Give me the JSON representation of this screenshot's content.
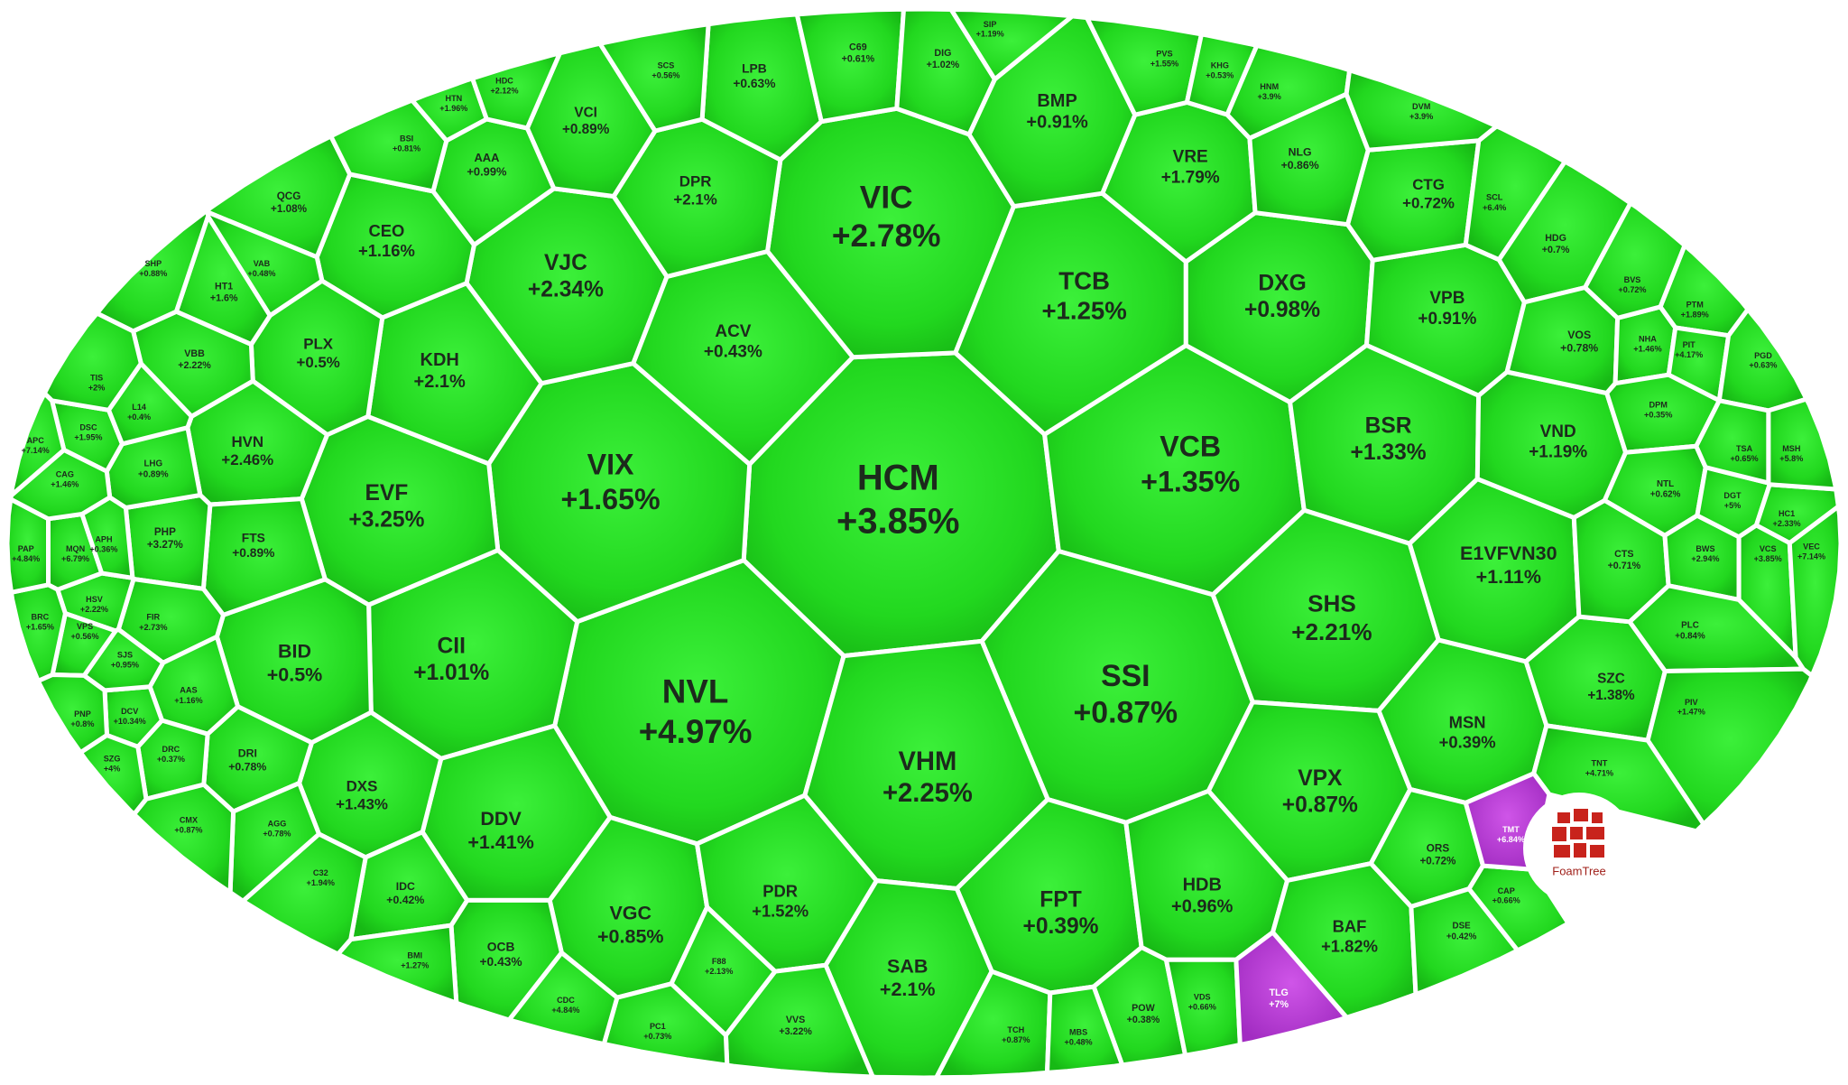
{
  "cells": [
    {
      "ticker": "HCM",
      "change": "+3.85%"
    },
    {
      "ticker": "NVL",
      "change": "+4.97%"
    },
    {
      "ticker": "VIC",
      "change": "+2.78%"
    },
    {
      "ticker": "VCB",
      "change": "+1.35%"
    },
    {
      "ticker": "SSI",
      "change": "+0.87%"
    },
    {
      "ticker": "VHM",
      "change": "+2.25%"
    },
    {
      "ticker": "VIX",
      "change": "+1.65%"
    },
    {
      "ticker": "TCB",
      "change": "+1.25%"
    },
    {
      "ticker": "DXG",
      "change": "+0.98%"
    },
    {
      "ticker": "BSR",
      "change": "+1.33%"
    },
    {
      "ticker": "SHS",
      "change": "+2.21%"
    },
    {
      "ticker": "VPX",
      "change": "+0.87%"
    },
    {
      "ticker": "FPT",
      "change": "+0.39%"
    },
    {
      "ticker": "SAB",
      "change": "+2.1%"
    },
    {
      "ticker": "CII",
      "change": "+1.01%"
    },
    {
      "ticker": "EVF",
      "change": "+3.25%"
    },
    {
      "ticker": "BID",
      "change": "+0.5%"
    },
    {
      "ticker": "VJC",
      "change": "+2.34%"
    },
    {
      "ticker": "KDH",
      "change": "+2.1%"
    },
    {
      "ticker": "DDV",
      "change": "+1.41%"
    },
    {
      "ticker": "VGC",
      "change": "+0.85%"
    },
    {
      "ticker": "PDR",
      "change": "+1.52%"
    },
    {
      "ticker": "HDB",
      "change": "+0.96%"
    },
    {
      "ticker": "BAF",
      "change": "+1.82%"
    },
    {
      "ticker": "MSN",
      "change": "+0.39%"
    },
    {
      "ticker": "E1VFVN30",
      "change": "+1.11%"
    },
    {
      "ticker": "VND",
      "change": "+1.19%"
    },
    {
      "ticker": "VPB",
      "change": "+0.91%"
    },
    {
      "ticker": "CTG",
      "change": "+0.72%"
    },
    {
      "ticker": "VRE",
      "change": "+1.79%"
    },
    {
      "ticker": "BMP",
      "change": "+0.91%"
    },
    {
      "ticker": "ACV",
      "change": "+0.43%"
    },
    {
      "ticker": "DPR",
      "change": "+2.1%"
    },
    {
      "ticker": "LPB",
      "change": "+0.63%"
    },
    {
      "ticker": "VCI",
      "change": "+0.89%"
    },
    {
      "ticker": "CEO",
      "change": "+1.16%"
    },
    {
      "ticker": "PLX",
      "change": "+0.5%"
    },
    {
      "ticker": "HVN",
      "change": "+2.46%"
    },
    {
      "ticker": "DXS",
      "change": "+1.43%"
    },
    {
      "ticker": "SZC",
      "change": "+1.38%"
    },
    {
      "ticker": "FTS",
      "change": "+0.89%"
    },
    {
      "ticker": "DRI",
      "change": "+0.78%"
    },
    {
      "ticker": "OCB",
      "change": "+0.43%"
    },
    {
      "ticker": "IDC",
      "change": "+0.42%"
    },
    {
      "ticker": "AAA",
      "change": "+0.99%"
    },
    {
      "ticker": "QCG",
      "change": "+1.08%"
    },
    {
      "ticker": "HT1",
      "change": "+1.6%"
    },
    {
      "ticker": "VBB",
      "change": "+2.22%"
    },
    {
      "ticker": "PHP",
      "change": "+3.27%"
    },
    {
      "ticker": "LHG",
      "change": "+0.89%"
    },
    {
      "ticker": "FIR",
      "change": "+2.73%"
    },
    {
      "ticker": "AAS",
      "change": "+1.16%"
    },
    {
      "ticker": "HSV",
      "change": "+2.22%"
    },
    {
      "ticker": "MQN",
      "change": "+6.79%"
    },
    {
      "ticker": "APH",
      "change": "+0.36%"
    },
    {
      "ticker": "DRC",
      "change": "+0.37%"
    },
    {
      "ticker": "HNM",
      "change": "+3.9%"
    },
    {
      "ticker": "NLG",
      "change": "+0.86%"
    },
    {
      "ticker": "SCL",
      "change": "+6.4%"
    },
    {
      "ticker": "HDG",
      "change": "+0.7%"
    },
    {
      "ticker": "VOS",
      "change": "+0.78%"
    },
    {
      "ticker": "NHA",
      "change": "+1.46%"
    },
    {
      "ticker": "DPM",
      "change": "+0.35%"
    },
    {
      "ticker": "NTL",
      "change": "+0.62%"
    },
    {
      "ticker": "CTS",
      "change": "+0.71%"
    },
    {
      "ticker": "BWS",
      "change": "+2.94%"
    },
    {
      "ticker": "DGT",
      "change": "+5%"
    },
    {
      "ticker": "PLC",
      "change": "+0.84%"
    },
    {
      "ticker": "PIV",
      "change": "+1.47%"
    },
    {
      "ticker": "TNT",
      "change": "+4.71%"
    },
    {
      "ticker": "ORS",
      "change": "+0.72%"
    },
    {
      "ticker": "DSE",
      "change": "+0.42%"
    },
    {
      "ticker": "POW",
      "change": "+0.38%"
    },
    {
      "ticker": "VVS",
      "change": "+3.22%"
    },
    {
      "ticker": "F88",
      "change": "+2.13%"
    },
    {
      "ticker": "PC1",
      "change": "+0.73%"
    },
    {
      "ticker": "C69",
      "change": "+0.61%"
    },
    {
      "ticker": "DIG",
      "change": "+1.02%"
    },
    {
      "ticker": "PVS",
      "change": "+1.55%"
    },
    {
      "ticker": "DVM",
      "change": "+3.9%"
    },
    {
      "ticker": "CDC",
      "change": "+4.84%"
    },
    {
      "ticker": "TCH",
      "change": "+0.87%"
    },
    {
      "ticker": "MBS",
      "change": "+0.48%"
    },
    {
      "ticker": "VDS",
      "change": "+0.66%"
    },
    {
      "ticker": "BMI",
      "change": "+1.27%"
    },
    {
      "ticker": "C32",
      "change": "+1.94%"
    },
    {
      "ticker": "AGG",
      "change": "+0.78%"
    },
    {
      "ticker": "CMX",
      "change": "+0.87%"
    },
    {
      "ticker": "DCV",
      "change": "+10.34%"
    },
    {
      "ticker": "SJS",
      "change": "+0.95%"
    },
    {
      "ticker": "VPS",
      "change": "+0.56%"
    },
    {
      "ticker": "BRC",
      "change": "+1.65%"
    },
    {
      "ticker": "PNP",
      "change": "+0.8%"
    },
    {
      "ticker": "SZG",
      "change": "+4%"
    },
    {
      "ticker": "PAP",
      "change": "+4.84%"
    },
    {
      "ticker": "DSC",
      "change": "+1.95%"
    },
    {
      "ticker": "APC",
      "change": "+7.14%"
    },
    {
      "ticker": "CAG",
      "change": "+1.46%"
    },
    {
      "ticker": "TIS",
      "change": "+2%"
    },
    {
      "ticker": "L14",
      "change": "+0.4%"
    },
    {
      "ticker": "BSI",
      "change": "+0.81%"
    },
    {
      "ticker": "VAB",
      "change": "+0.48%"
    },
    {
      "ticker": "HTN",
      "change": "+1.96%"
    },
    {
      "ticker": "HDC",
      "change": "+2.12%"
    },
    {
      "ticker": "SCS",
      "change": "+0.56%"
    },
    {
      "ticker": "SIP",
      "change": "+1.19%"
    },
    {
      "ticker": "KHG",
      "change": "+0.53%"
    },
    {
      "ticker": "PTM",
      "change": "+1.89%"
    },
    {
      "ticker": "PIT",
      "change": "+4.17%"
    },
    {
      "ticker": "PGD",
      "change": "+0.63%"
    },
    {
      "ticker": "TSA",
      "change": "+0.65%"
    },
    {
      "ticker": "HC1",
      "change": "+2.33%"
    },
    {
      "ticker": "VCS",
      "change": "+3.85%"
    },
    {
      "ticker": "VEC",
      "change": "+7.14%"
    },
    {
      "ticker": "MSH",
      "change": "+5.8%"
    },
    {
      "ticker": "BVS",
      "change": "+0.72%"
    },
    {
      "ticker": "CAP",
      "change": "+0.66%"
    },
    {
      "ticker": "SHP",
      "change": "+0.88%"
    }
  ],
  "ceiling_cells": [
    {
      "ticker": "TMT",
      "change": "+6.84%"
    },
    {
      "ticker": "TLG",
      "change": "+7%"
    }
  ],
  "color": "#22d81f",
  "ceiling_color": "#b538d2",
  "logo": "FoamTree"
}
